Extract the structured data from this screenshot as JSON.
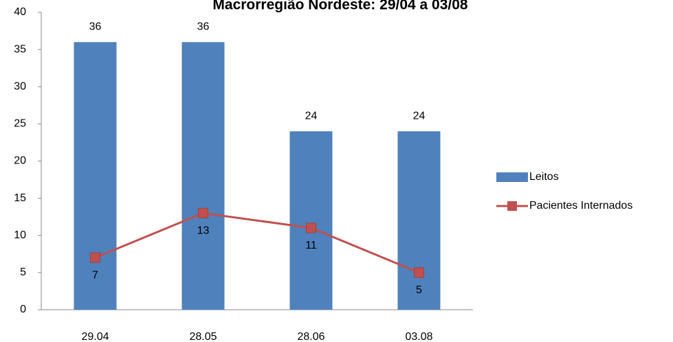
{
  "chart_data": {
    "type": "bar",
    "title": "Macrorregião Nordeste: 29/04 a 03/08",
    "categories": [
      "29.04",
      "28.05",
      "28.06",
      "03.08"
    ],
    "series": [
      {
        "name": "Leitos",
        "type": "bar",
        "color": "#4f81bd",
        "values": [
          36,
          36,
          24,
          24
        ]
      },
      {
        "name": "Pacientes Internados",
        "type": "line",
        "color": "#c0504d",
        "values": [
          7,
          13,
          11,
          5
        ]
      }
    ],
    "ylim": [
      0,
      40
    ],
    "yticks": [
      0,
      5,
      10,
      15,
      20,
      25,
      30,
      35,
      40
    ],
    "grid": false,
    "legend": "right"
  }
}
